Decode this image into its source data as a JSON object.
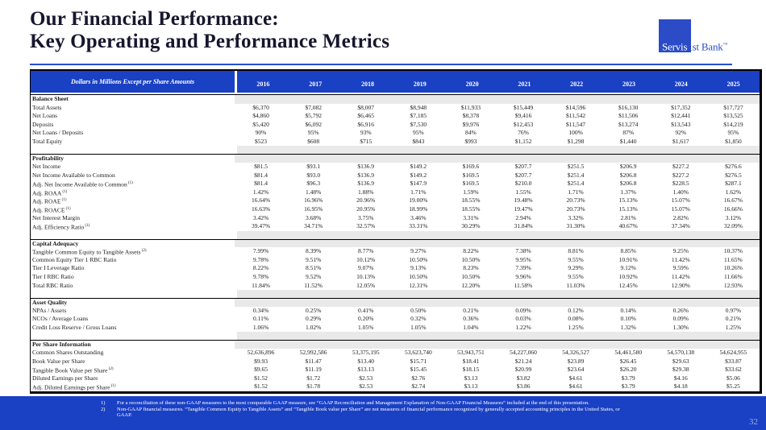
{
  "slide": {
    "title_line1": "Our Financial Performance:",
    "title_line2": "Key Operating and Performance Metrics",
    "page_number": "32"
  },
  "logo": {
    "part1": "Servis",
    "part2": "1st Bank",
    "mark": "™"
  },
  "colors": {
    "brand_blue": "#1a40c4",
    "logo_blue": "#2b4bc7",
    "section_shade": "#e9e9e9",
    "title_text": "#16162e",
    "rule_blue": "#2450d0"
  },
  "table": {
    "corner_label": "Dollars in Millions Except per Share Amounts",
    "years": [
      "2016",
      "2017",
      "2018",
      "2019",
      "2020",
      "2021",
      "2022",
      "2023",
      "2024",
      "2025"
    ],
    "sections": [
      {
        "name": "Balance Sheet",
        "rows": [
          {
            "label": "Total Assets",
            "sup": "",
            "values": [
              "$6,370",
              "$7,082",
              "$8,007",
              "$8,948",
              "$11,933",
              "$15,449",
              "$14,596",
              "$16,130",
              "$17,352",
              "$17,727"
            ]
          },
          {
            "label": "Net Loans",
            "sup": "",
            "values": [
              "$4,860",
              "$5,792",
              "$6,465",
              "$7,185",
              "$8,378",
              "$9,416",
              "$11,542",
              "$11,506",
              "$12,441",
              "$13,525"
            ]
          },
          {
            "label": "Deposits",
            "sup": "",
            "values": [
              "$5,420",
              "$6,092",
              "$6,916",
              "$7,530",
              "$9,976",
              "$12,453",
              "$11,547",
              "$13,274",
              "$13,543",
              "$14,219"
            ]
          },
          {
            "label": "Net Loans / Deposits",
            "sup": "",
            "values": [
              "90%",
              "95%",
              "93%",
              "95%",
              "84%",
              "76%",
              "100%",
              "87%",
              "92%",
              "95%"
            ]
          },
          {
            "label": "Total Equity",
            "sup": "",
            "values": [
              "$523",
              "$608",
              "$715",
              "$843",
              "$993",
              "$1,152",
              "$1,298",
              "$1,440",
              "$1,617",
              "$1,850"
            ]
          }
        ]
      },
      {
        "name": "Profitability",
        "rows": [
          {
            "label": "Net Income",
            "sup": "",
            "values": [
              "$81.5",
              "$93.1",
              "$136.9",
              "$149.2",
              "$169.6",
              "$207.7",
              "$251.5",
              "$206.9",
              "$227.2",
              "$276.6"
            ]
          },
          {
            "label": "Net Income Available to Common",
            "sup": "",
            "values": [
              "$81.4",
              "$93.0",
              "$136.9",
              "$149.2",
              "$169.5",
              "$207.7",
              "$251.4",
              "$206.8",
              "$227.2",
              "$276.5"
            ]
          },
          {
            "label": "Adj. Net Income Available to Common",
            "sup": "(1)",
            "values": [
              "$81.4",
              "$96.3",
              "$136.9",
              "$147.9",
              "$169.5",
              "$210.0",
              "$251.4",
              "$206.8",
              "$228.5",
              "$287.1"
            ]
          },
          {
            "label": "Adj. ROAA",
            "sup": "(1)",
            "values": [
              "1.42%",
              "1.48%",
              "1.88%",
              "1.71%",
              "1.59%",
              "1.55%",
              "1.71%",
              "1.37%",
              "1.40%",
              "1.62%"
            ]
          },
          {
            "label": "Adj. ROAE",
            "sup": "(1)",
            "values": [
              "16.64%",
              "16.96%",
              "20.96%",
              "19.00%",
              "18.55%",
              "19.48%",
              "20.73%",
              "15.13%",
              "15.07%",
              "16.67%"
            ]
          },
          {
            "label": "Adj. ROACE",
            "sup": "(1)",
            "values": [
              "16.63%",
              "16.95%",
              "20.95%",
              "18.99%",
              "18.55%",
              "19.47%",
              "20.73%",
              "15.13%",
              "15.07%",
              "16.66%"
            ]
          },
          {
            "label": "Net Interest Margin",
            "sup": "",
            "values": [
              "3.42%",
              "3.68%",
              "3.75%",
              "3.46%",
              "3.31%",
              "2.94%",
              "3.32%",
              "2.81%",
              "2.82%",
              "3.12%"
            ]
          },
          {
            "label": "Adj. Efficiency Ratio",
            "sup": "(1)",
            "values": [
              "39.47%",
              "34.71%",
              "32.57%",
              "33.31%",
              "30.29%",
              "31.84%",
              "31.30%",
              "40.67%",
              "37.34%",
              "32.09%"
            ]
          }
        ]
      },
      {
        "name": "Capital Adequacy",
        "rows": [
          {
            "label": "Tangible Common Equity to Tangible Assets",
            "sup": "(2)",
            "values": [
              "7.99%",
              "8.39%",
              "8.77%",
              "9.27%",
              "8.22%",
              "7.38%",
              "8.81%",
              "8.85%",
              "9.25%",
              "10.37%"
            ]
          },
          {
            "label": "Common Equity Tier 1 RBC Ratio",
            "sup": "",
            "values": [
              "9.78%",
              "9.51%",
              "10.12%",
              "10.50%",
              "10.50%",
              "9.95%",
              "9.55%",
              "10.91%",
              "11.42%",
              "11.65%"
            ]
          },
          {
            "label": "Tier I Leverage Ratio",
            "sup": "",
            "values": [
              "8.22%",
              "8.51%",
              "9.07%",
              "9.13%",
              "8.23%",
              "7.39%",
              "9.29%",
              "9.12%",
              "9.59%",
              "10.26%"
            ]
          },
          {
            "label": "Tier I RBC Ratio",
            "sup": "",
            "values": [
              "9.78%",
              "9.52%",
              "10.13%",
              "10.50%",
              "10.50%",
              "9.96%",
              "9.55%",
              "10.92%",
              "11.42%",
              "11.66%"
            ]
          },
          {
            "label": "Total RBC Ratio",
            "sup": "",
            "values": [
              "11.84%",
              "11.52%",
              "12.05%",
              "12.31%",
              "12.20%",
              "11.58%",
              "11.03%",
              "12.45%",
              "12.90%",
              "12.93%"
            ]
          }
        ]
      },
      {
        "name": "Asset Quality",
        "rows": [
          {
            "label": "NPAs / Assets",
            "sup": "",
            "values": [
              "0.34%",
              "0.25%",
              "0.41%",
              "0.50%",
              "0.21%",
              "0.09%",
              "0.12%",
              "0.14%",
              "0.26%",
              "0.97%"
            ]
          },
          {
            "label": "NCOs / Average Loans",
            "sup": "",
            "values": [
              "0.11%",
              "0.29%",
              "0.20%",
              "0.32%",
              "0.36%",
              "0.03%",
              "0.08%",
              "0.10%",
              "0.09%",
              "0.21%"
            ]
          },
          {
            "label": "Credit Loss Reserve / Gross Loans",
            "sup": "",
            "values": [
              "1.06%",
              "1.02%",
              "1.05%",
              "1.05%",
              "1.04%",
              "1.22%",
              "1.25%",
              "1.32%",
              "1.30%",
              "1.25%"
            ]
          }
        ]
      },
      {
        "name": "Per Share Information",
        "rows": [
          {
            "label": "Common Shares Outstanding",
            "sup": "",
            "values": [
              "52,636,896",
              "52,992,586",
              "53,375,195",
              "53,623,740",
              "53,943,751",
              "54,227,060",
              "54,326,527",
              "54,461,580",
              "54,570,138",
              "54,624,955"
            ]
          },
          {
            "label": "Book Value per Share",
            "sup": "",
            "values": [
              "$9.93",
              "$11.47",
              "$13.40",
              "$15.71",
              "$18.41",
              "$21.24",
              "$23.89",
              "$26.45",
              "$29.63",
              "$33.87"
            ]
          },
          {
            "label": "Tangible Book Value per Share",
            "sup": "(2)",
            "values": [
              "$9.65",
              "$11.19",
              "$13.13",
              "$15.45",
              "$18.15",
              "$20.99",
              "$23.64",
              "$26.20",
              "$29.38",
              "$33.62"
            ]
          },
          {
            "label": "Diluted Earnings per Share",
            "sup": "",
            "values": [
              "$1.52",
              "$1.72",
              "$2.53",
              "$2.76",
              "$3.13",
              "$3.82",
              "$4.61",
              "$3.79",
              "$4.16",
              "$5.06"
            ]
          },
          {
            "label": "Adj. Diluted Earnings per Share",
            "sup": "(1)",
            "values": [
              "$1.52",
              "$1.78",
              "$2.53",
              "$2.74",
              "$3.13",
              "$3.86",
              "$4.61",
              "$3.79",
              "$4.18",
              "$5.25"
            ]
          }
        ]
      }
    ]
  },
  "footnotes": [
    {
      "num": "1)",
      "text": "For a reconciliation of these non-GAAP measures to the most comparable GAAP measure, see “GAAP Reconciliation and Management Explanation of Non-GAAP Financial Measures” included at the end of this presentation."
    },
    {
      "num": "2)",
      "text": "Non-GAAP financial measures.  “Tangible Common Equity to Tangible Assets” and  “Tangible Book value per Share” are not measures of financial performance recognized by generally accepted accounting principles in the United States, or GAAP."
    }
  ]
}
